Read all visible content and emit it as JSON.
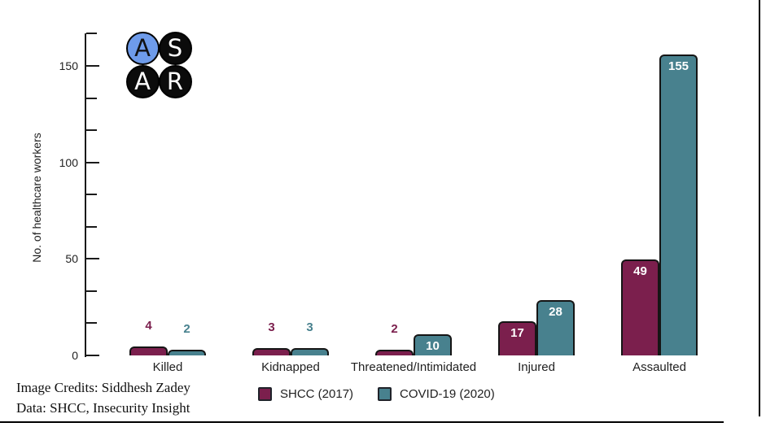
{
  "page": {
    "background": "#ffffff"
  },
  "logo": {
    "name": "ASAR logo",
    "letters": [
      {
        "char": "A",
        "circle_color": "#6e9bea",
        "letter_color": "#111111"
      },
      {
        "char": "S",
        "circle_color": "#0b0b0b",
        "letter_color": "#ffffff"
      },
      {
        "char": "A",
        "circle_color": "#0b0b0b",
        "letter_color": "#ffffff"
      },
      {
        "char": "R",
        "circle_color": "#0b0b0b",
        "letter_color": "#ffffff"
      }
    ]
  },
  "chart_data": {
    "type": "bar",
    "title": "",
    "xlabel": "",
    "ylabel": "No. of healthcare workers",
    "categories": [
      "Killed",
      "Kidnapped",
      "Threatened/Intimidated",
      "Injured",
      "Assaulted"
    ],
    "series": [
      {
        "name": "SHCC (2017)",
        "color": "#7b1f4d",
        "values": [
          4,
          3,
          2,
          17,
          49
        ]
      },
      {
        "name": "COVID-19 (2020)",
        "color": "#48818e",
        "values": [
          2,
          3,
          10,
          28,
          155
        ]
      }
    ],
    "ylim": [
      0,
      166.7
    ],
    "y_ticks_major": [
      0,
      50,
      100,
      150
    ],
    "y_ticks_minor": [
      16.7,
      33.3,
      66.7,
      83.3,
      116.7,
      133.3,
      166.7
    ],
    "grid": false,
    "legend_position": "bottom",
    "bar_value_labels": true,
    "inside_label_color": "#ffffff"
  },
  "footer": {
    "line1": "Image Credits: Siddhesh Zadey",
    "line2": "Data: SHCC, Insecurity Insight"
  },
  "colors": {
    "axis": "#1a1a1a",
    "text": "#1f1f1f",
    "bar_outline": "#151515"
  }
}
